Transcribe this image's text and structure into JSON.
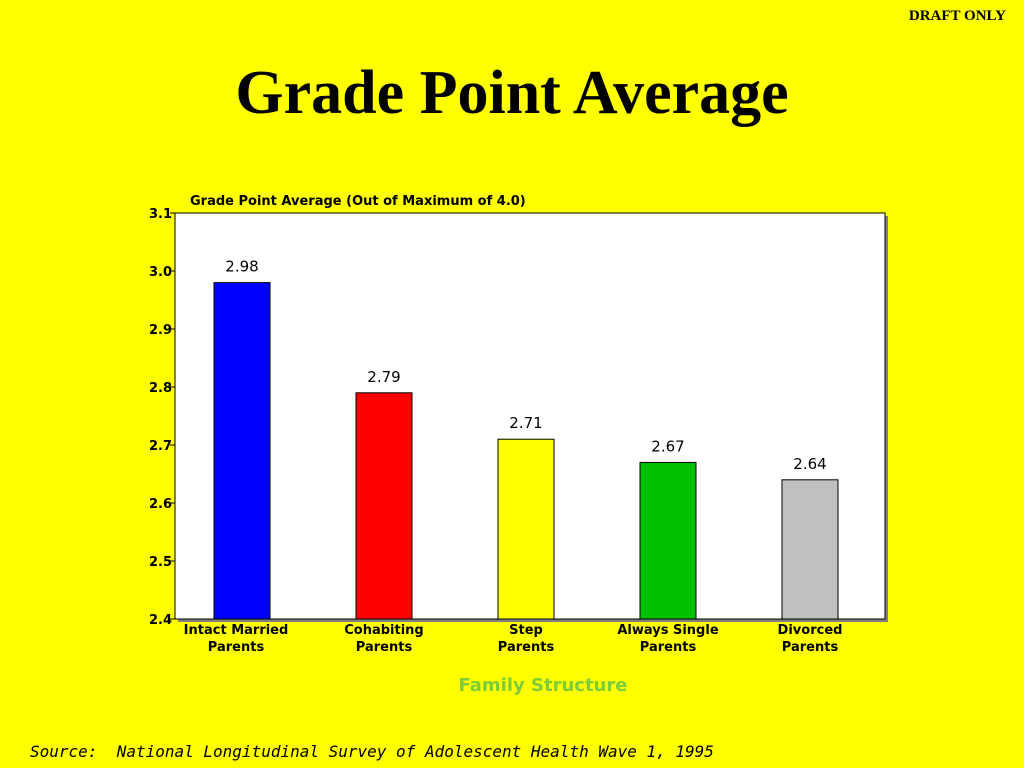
{
  "header": {
    "draft_label": "DRAFT ONLY",
    "title": "Grade Point Average"
  },
  "source": "Source:  National Longitudinal Survey of Adolescent Health Wave 1, 1995",
  "colors": {
    "background": "#ffff00",
    "plot_area": "#ffffff",
    "axis_title": "#7dcc3a"
  },
  "chart_data": {
    "type": "bar",
    "title": "Grade Point Average (Out of Maximum of 4.0)",
    "xlabel": "Family Structure",
    "ylabel": "",
    "ylim": [
      2.4,
      3.1
    ],
    "yticks": [
      "2.4",
      "2.5",
      "2.6",
      "2.7",
      "2.8",
      "2.9",
      "3.0",
      "3.1"
    ],
    "grid": false,
    "legend": "none",
    "categories": [
      [
        "Intact Married",
        "Parents"
      ],
      [
        "Cohabiting",
        "Parents"
      ],
      [
        "Step",
        "Parents"
      ],
      [
        "Always Single",
        "Parents"
      ],
      [
        "Divorced",
        "Parents"
      ]
    ],
    "values": [
      2.98,
      2.79,
      2.71,
      2.67,
      2.64
    ],
    "data_labels": [
      "2.98",
      "2.79",
      "2.71",
      "2.67",
      "2.64"
    ],
    "bar_colors": [
      "#0000ff",
      "#ff0000",
      "#ffff00",
      "#00c000",
      "#c0c0c0"
    ]
  }
}
